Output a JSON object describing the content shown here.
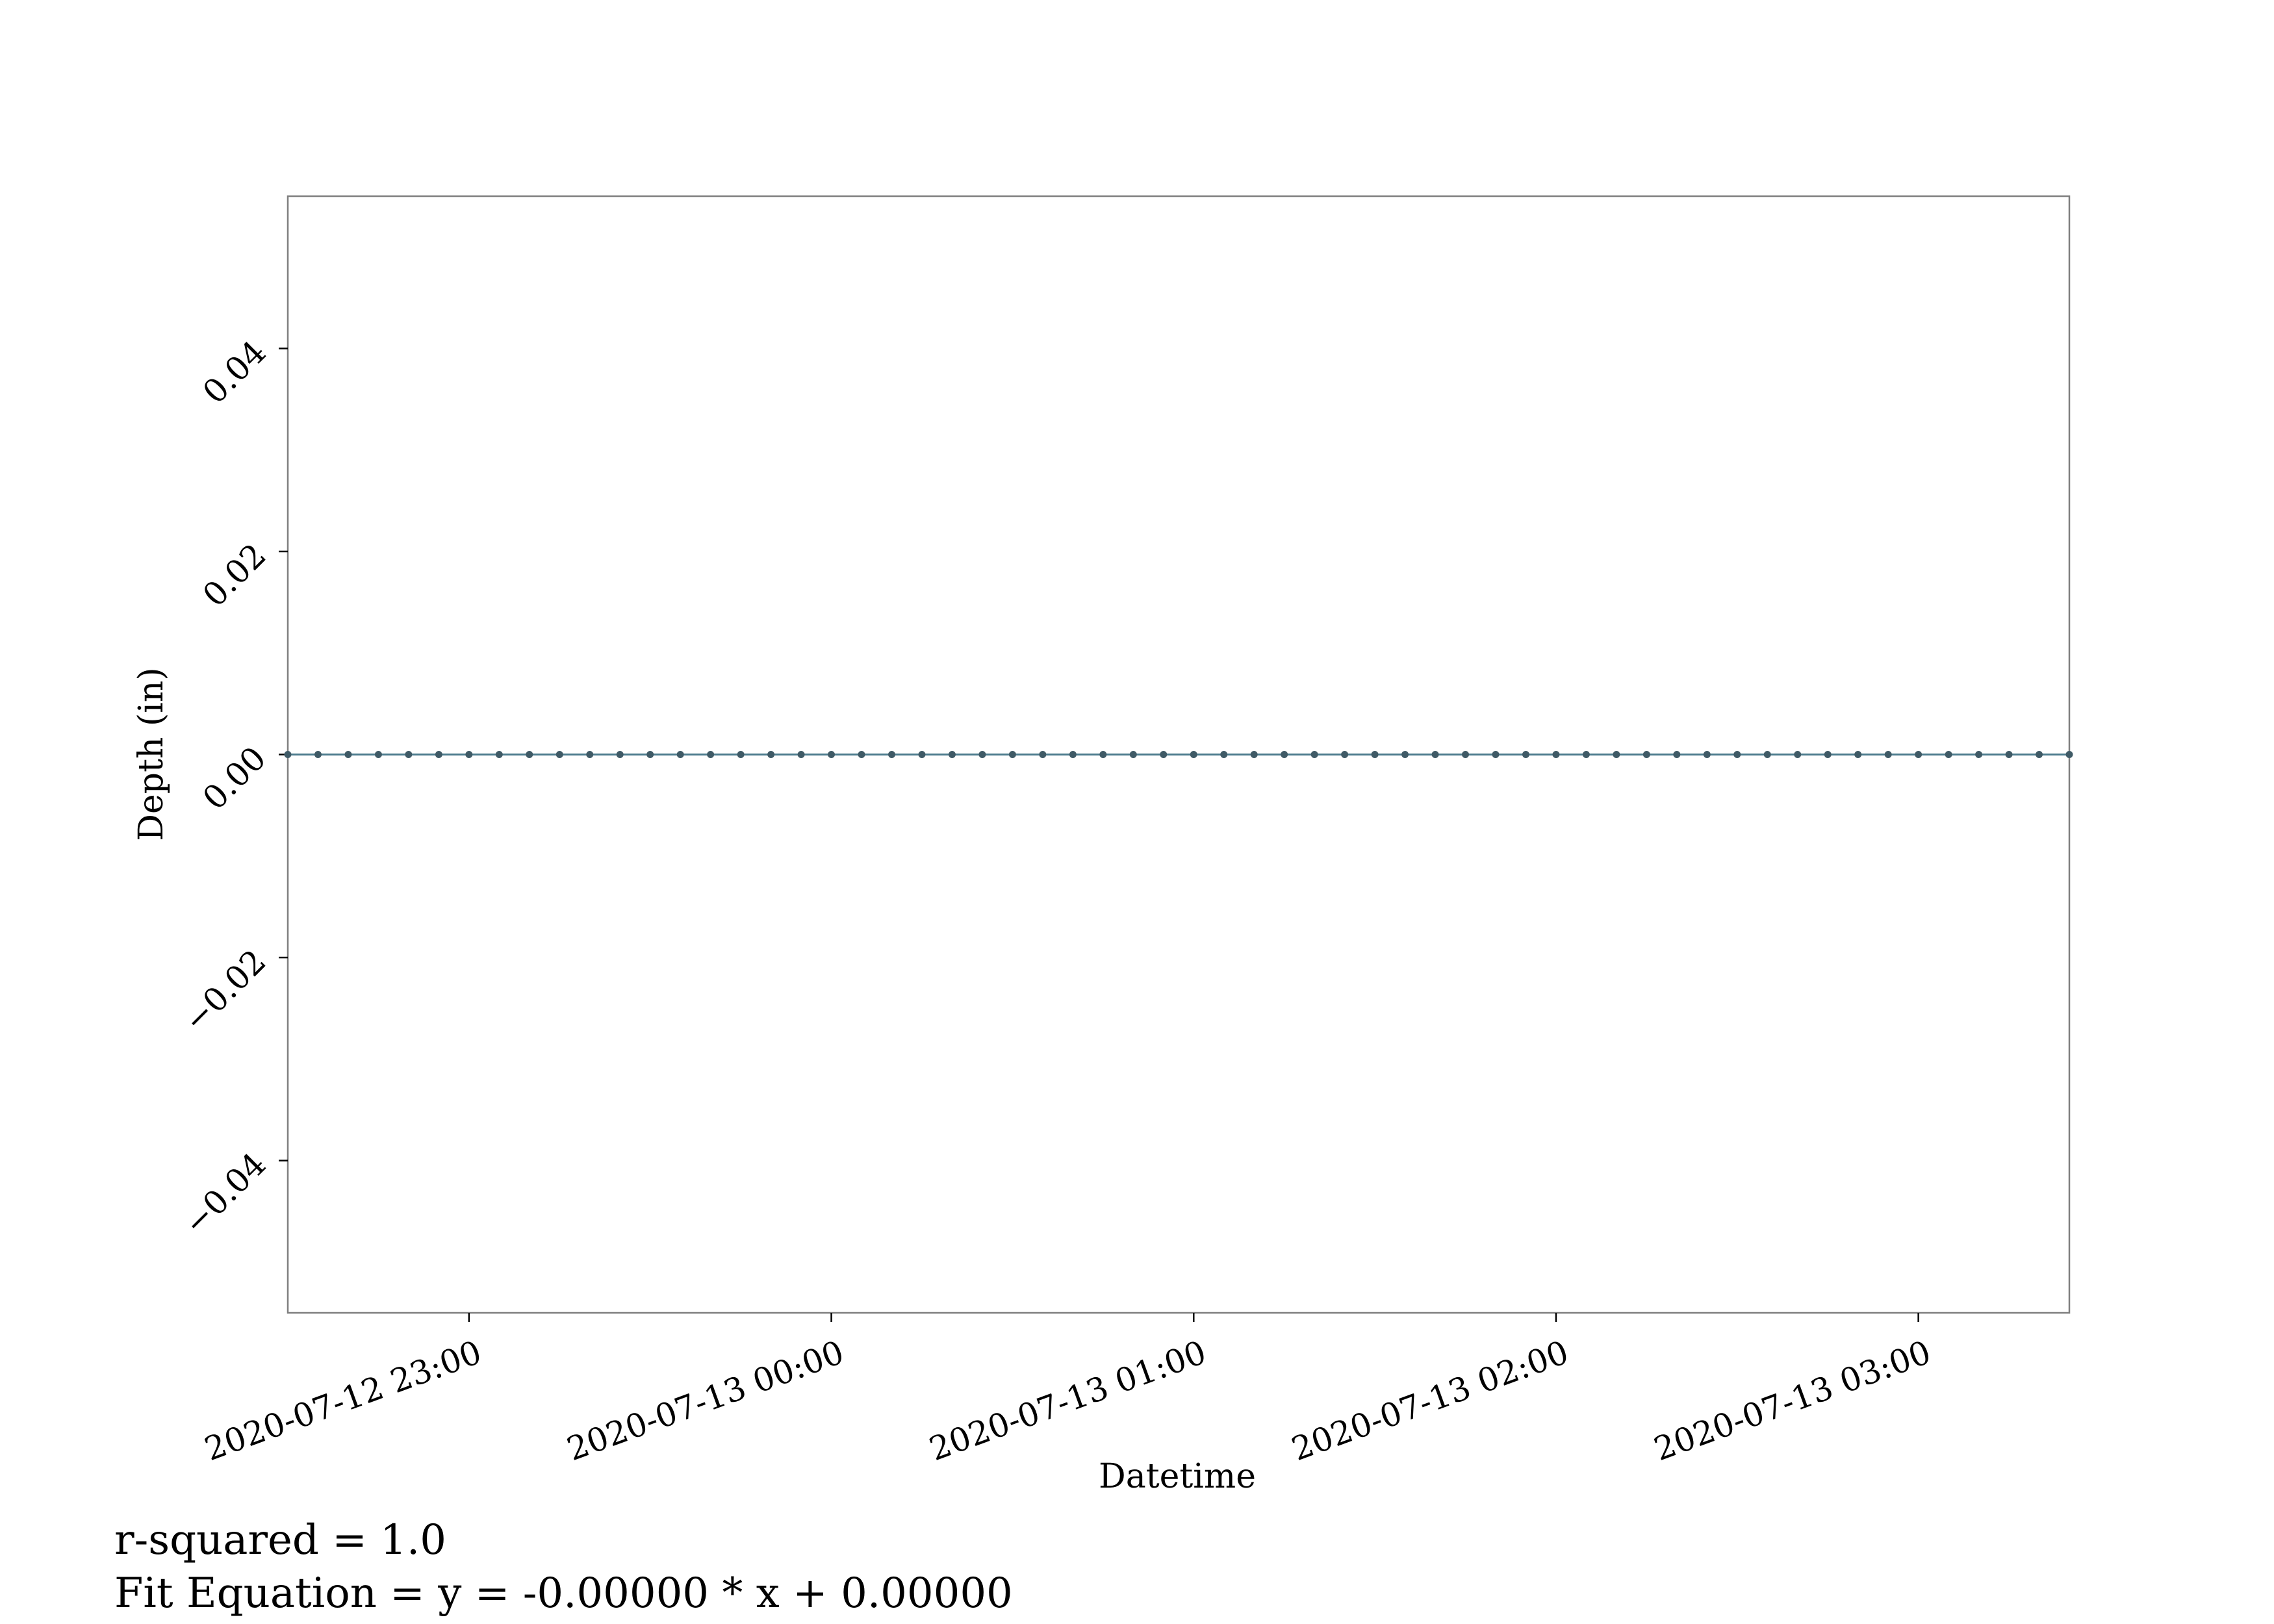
{
  "chart_data": {
    "type": "line",
    "title": "",
    "xlabel": "Datetime",
    "ylabel": "Depth (in)",
    "xlim": [
      "2020-07-12 22:30",
      "2020-07-13 03:25"
    ],
    "ylim": [
      -0.055,
      0.055
    ],
    "x_ticks": [
      "2020-07-12 23:00",
      "2020-07-13 00:00",
      "2020-07-13 01:00",
      "2020-07-13 02:00",
      "2020-07-13 03:00"
    ],
    "y_ticks": [
      {
        "value": -0.04,
        "label": "−0.04"
      },
      {
        "value": -0.02,
        "label": "−0.02"
      },
      {
        "value": 0.0,
        "label": "0.00"
      },
      {
        "value": 0.02,
        "label": "0.02"
      },
      {
        "value": 0.04,
        "label": "0.04"
      }
    ],
    "grid": false,
    "series": [
      {
        "color": "#4a7a8c",
        "x_start": "2020-07-12 22:30",
        "x_end": "2020-07-13 03:25",
        "x_step": "5 min",
        "y_constant": 0.0
      }
    ],
    "annotations": {
      "r_squared": "r-squared = 1.0",
      "fit_equation": "Fit Equation = y = -0.00000 * x + 0.00000"
    }
  }
}
